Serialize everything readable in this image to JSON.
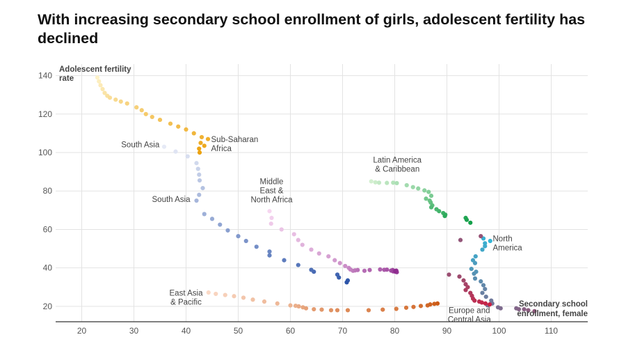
{
  "chart_data": {
    "type": "scatter",
    "title": "With increasing secondary school enrollment of girls, adolescent fertility has declined",
    "ylabel_lines": [
      "Adolescent fertility",
      "rate"
    ],
    "xlabel_lines": [
      "Secondary school",
      "enrollment, female"
    ],
    "xlim": [
      15,
      117
    ],
    "ylim": [
      12,
      146
    ],
    "x_ticks": [
      20,
      30,
      40,
      50,
      60,
      70,
      80,
      90,
      100,
      110
    ],
    "y_ticks": [
      20,
      40,
      60,
      80,
      100,
      120,
      140
    ],
    "grid": true,
    "series": [
      {
        "color_start": "#fdf1c6",
        "color_end": "#eca20e",
        "points": [
          [
            23.0,
            139
          ],
          [
            23.3,
            137
          ],
          [
            23.6,
            135
          ],
          [
            24.0,
            133
          ],
          [
            24.4,
            131
          ],
          [
            24.9,
            129.5
          ],
          [
            25.4,
            128.5
          ],
          [
            26.5,
            127.5
          ],
          [
            27.5,
            126.5
          ],
          [
            28.7,
            125.5
          ],
          [
            30.5,
            123.5
          ],
          [
            31.5,
            122
          ],
          [
            32.3,
            120
          ],
          [
            33.5,
            118.5
          ],
          [
            35,
            117
          ],
          [
            37,
            115
          ],
          [
            38.5,
            113.5
          ],
          [
            40,
            112
          ],
          [
            41.5,
            110
          ],
          [
            43,
            108
          ],
          [
            44.2,
            107
          ],
          [
            42.8,
            105
          ],
          [
            43.5,
            103.5
          ],
          [
            42.5,
            102
          ],
          [
            42.6,
            100
          ]
        ]
      },
      {
        "color_start": "#e6eaf6",
        "color_end": "#2c54a8",
        "points": [
          [
            35.8,
            103
          ],
          [
            38,
            100.5
          ],
          [
            40.3,
            98
          ],
          [
            42,
            94.5
          ],
          [
            42.3,
            91.5
          ],
          [
            42.5,
            88.5
          ],
          [
            42.6,
            85.5
          ],
          [
            43.2,
            81.5
          ],
          [
            42.5,
            78
          ],
          [
            42.0,
            75
          ],
          [
            43.5,
            68
          ],
          [
            45,
            65.5
          ],
          [
            46.5,
            62.5
          ],
          [
            48,
            59.5
          ],
          [
            50,
            56.5
          ],
          [
            51.5,
            54
          ],
          [
            53.5,
            51
          ],
          [
            56,
            48.5
          ],
          [
            56,
            46.5
          ],
          [
            58.8,
            44
          ],
          [
            61.5,
            41.5
          ],
          [
            64,
            39
          ],
          [
            64.5,
            38
          ],
          [
            69,
            36.5
          ],
          [
            69.3,
            35
          ],
          [
            71,
            33.5
          ],
          [
            70.8,
            32.5
          ]
        ]
      },
      {
        "color_start": "#f6d6f0",
        "color_end": "#8e2b8f",
        "points": [
          [
            56,
            69.5
          ],
          [
            56.4,
            66
          ],
          [
            56.3,
            63
          ],
          [
            58.3,
            60
          ],
          [
            60.7,
            57.5
          ],
          [
            61.5,
            54.5
          ],
          [
            62.3,
            52
          ],
          [
            64,
            49.5
          ],
          [
            65.5,
            47.5
          ],
          [
            67.3,
            46
          ],
          [
            68.5,
            44
          ],
          [
            69.5,
            42.5
          ],
          [
            70.5,
            41
          ],
          [
            71.2,
            40
          ],
          [
            71.5,
            39.2
          ],
          [
            72,
            38.5
          ],
          [
            72.4,
            38.7
          ],
          [
            72.9,
            38.9
          ],
          [
            74.2,
            38.5
          ],
          [
            75.2,
            38.9
          ],
          [
            77.2,
            39.2
          ],
          [
            78,
            39
          ],
          [
            78.5,
            39.1
          ],
          [
            79.3,
            38.6
          ],
          [
            79.6,
            38.9
          ],
          [
            79.7,
            38.2
          ],
          [
            80.1,
            38
          ],
          [
            80.4,
            37.8
          ],
          [
            80.3,
            38.6
          ],
          [
            80.1,
            38.4
          ]
        ]
      },
      {
        "color_start": "#d3efd0",
        "color_end": "#14a04a",
        "points": [
          [
            75.5,
            85
          ],
          [
            76.3,
            84.5
          ],
          [
            77,
            84.3
          ],
          [
            78.5,
            84.2
          ],
          [
            79.7,
            84.3
          ],
          [
            80.4,
            84.1
          ],
          [
            82.3,
            83
          ],
          [
            83.5,
            82
          ],
          [
            84.5,
            81.3
          ],
          [
            85.7,
            80.3
          ],
          [
            86.5,
            79.5
          ],
          [
            87,
            77.5
          ],
          [
            86,
            76
          ],
          [
            86.7,
            75
          ],
          [
            86.9,
            74
          ],
          [
            87.2,
            72.5
          ],
          [
            87,
            71.5
          ],
          [
            88,
            70.5
          ],
          [
            88.5,
            69.5
          ],
          [
            89.3,
            68.5
          ],
          [
            89.7,
            67.7
          ],
          [
            89.6,
            67
          ],
          [
            93.6,
            66
          ],
          [
            93.8,
            65
          ],
          [
            94.5,
            63.5
          ]
        ]
      },
      {
        "color_start": "#33b5d6",
        "color_end": "#c92145",
        "points": [
          [
            98.3,
            54
          ],
          [
            97,
            55.3
          ],
          [
            97.3,
            52.8
          ],
          [
            97.3,
            51.3
          ],
          [
            96.8,
            49.5
          ],
          [
            95.5,
            46
          ],
          [
            95,
            44
          ],
          [
            95.4,
            42.5
          ],
          [
            94.7,
            39.5
          ],
          [
            95.6,
            38
          ],
          [
            95.2,
            37
          ],
          [
            95.4,
            34.5
          ],
          [
            96.5,
            33
          ],
          [
            97,
            31
          ],
          [
            97.3,
            29
          ],
          [
            96.8,
            27
          ],
          [
            97.5,
            25
          ],
          [
            98.5,
            23
          ],
          [
            98.7,
            21.5
          ],
          [
            97.8,
            20.5
          ],
          [
            99.8,
            19.5
          ],
          [
            100.3,
            19
          ],
          [
            103.3,
            19
          ],
          [
            103.8,
            18.5
          ],
          [
            104.8,
            18.5
          ],
          [
            105.6,
            18
          ],
          [
            106.8,
            17.5
          ],
          [
            92.6,
            54.5
          ],
          [
            96.5,
            56.5
          ],
          [
            90.4,
            36.5
          ],
          [
            92.4,
            35.5
          ],
          [
            93.2,
            33.5
          ],
          [
            93.6,
            31.5
          ],
          [
            94,
            30
          ],
          [
            93.6,
            28.5
          ],
          [
            94.5,
            27
          ],
          [
            94.8,
            25.5
          ],
          [
            95,
            24
          ],
          [
            95.3,
            23
          ],
          [
            96.2,
            22.5
          ],
          [
            96.7,
            22
          ],
          [
            97.4,
            21.5
          ],
          [
            98.2,
            21
          ]
        ]
      },
      {
        "color_start": "#fad9c6",
        "color_end": "#cc5b16",
        "points": [
          [
            44.3,
            27.2
          ],
          [
            45.7,
            26.5
          ],
          [
            47.5,
            25.9
          ],
          [
            49.2,
            25.3
          ],
          [
            51,
            24.5
          ],
          [
            52.8,
            23.5
          ],
          [
            55,
            22.5
          ],
          [
            57.5,
            21.5
          ],
          [
            60,
            20.5
          ],
          [
            61,
            20.3
          ],
          [
            61.6,
            20
          ],
          [
            62.4,
            19.5
          ],
          [
            63,
            19
          ],
          [
            64.5,
            18.5
          ],
          [
            66,
            18.3
          ],
          [
            67.8,
            18
          ],
          [
            69,
            18
          ],
          [
            71,
            18
          ],
          [
            75,
            18
          ],
          [
            77.7,
            18.3
          ],
          [
            80.3,
            18.7
          ],
          [
            82.2,
            19.3
          ],
          [
            83.6,
            19.7
          ],
          [
            85,
            20.2
          ],
          [
            86.3,
            20.5
          ],
          [
            86.8,
            21
          ],
          [
            87.6,
            21.3
          ],
          [
            88.2,
            21.5
          ]
        ]
      }
    ],
    "annotations": [
      {
        "lines": [
          "Sub-Saharan",
          "Africa"
        ],
        "x": 44.8,
        "y": 105.5,
        "anchor": "start"
      },
      {
        "lines": [
          "South Asia"
        ],
        "x": 34.9,
        "y": 102.7,
        "anchor": "end"
      },
      {
        "lines": [
          "South Asia"
        ],
        "x": 40.8,
        "y": 74.3,
        "anchor": "end"
      },
      {
        "lines": [
          "Middle",
          "East &",
          "North Africa"
        ],
        "x": 56.4,
        "y": 83.5,
        "anchor": "middle"
      },
      {
        "lines": [
          "Latin America",
          "& Caribbean"
        ],
        "x": 80.5,
        "y": 94.7,
        "anchor": "middle"
      },
      {
        "lines": [
          "North",
          "America"
        ],
        "x": 98.8,
        "y": 53.8,
        "anchor": "start"
      },
      {
        "lines": [
          "East Asia",
          "& Pacific"
        ],
        "x": 40.0,
        "y": 25.5,
        "anchor": "middle"
      },
      {
        "lines": [
          "Europe and",
          "Central Asia"
        ],
        "x": 94.3,
        "y": 16.5,
        "anchor": "middle"
      }
    ]
  }
}
